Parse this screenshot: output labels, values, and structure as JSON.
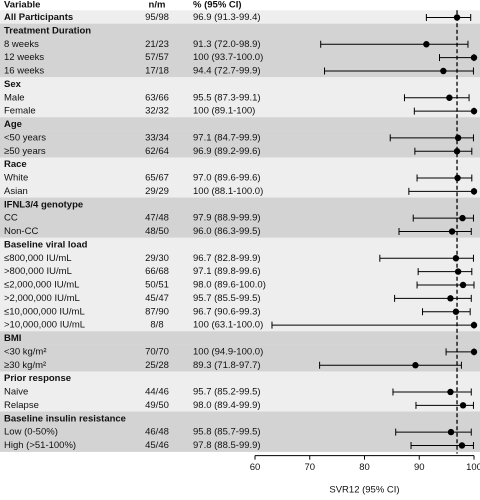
{
  "chart_data": {
    "type": "forest",
    "columns": [
      "Variable",
      "n/m",
      "% (95% CI)"
    ],
    "overall": {
      "label": "All Participants",
      "n_m": "95/98",
      "value_label": "96.9 (91.3-99.4)",
      "value": 96.9,
      "ci": [
        91.3,
        99.4
      ]
    },
    "groups": [
      {
        "name": "Treatment Duration",
        "rows": [
          {
            "label": "8 weeks",
            "n_m": "21/23",
            "value_label": "91.3 (72.0-98.9)",
            "value": 91.3,
            "ci": [
              72.0,
              98.9
            ]
          },
          {
            "label": "12 weeks",
            "n_m": "57/57",
            "value_label": "100 (93.7-100.0)",
            "value": 100,
            "ci": [
              93.7,
              100.0
            ]
          },
          {
            "label": "16 weeks",
            "n_m": "17/18",
            "value_label": "94.4 (72.7-99.9)",
            "value": 94.4,
            "ci": [
              72.7,
              99.9
            ]
          }
        ]
      },
      {
        "name": "Sex",
        "rows": [
          {
            "label": "Male",
            "n_m": "63/66",
            "value_label": "95.5 (87.3-99.1)",
            "value": 95.5,
            "ci": [
              87.3,
              99.1
            ]
          },
          {
            "label": "Female",
            "n_m": "32/32",
            "value_label": "100 (89.1-100)",
            "value": 100,
            "ci": [
              89.1,
              100
            ]
          }
        ]
      },
      {
        "name": "Age",
        "rows": [
          {
            "label": "<50 years",
            "n_m": "33/34",
            "value_label": "97.1 (84.7-99.9)",
            "value": 97.1,
            "ci": [
              84.7,
              99.9
            ]
          },
          {
            "label": "≥50 years",
            "n_m": "62/64",
            "value_label": "96.9 (89.2-99.6)",
            "value": 96.9,
            "ci": [
              89.2,
              99.6
            ]
          }
        ]
      },
      {
        "name": "Race",
        "rows": [
          {
            "label": "White",
            "n_m": "65/67",
            "value_label": "97.0 (89.6-99.6)",
            "value": 97.0,
            "ci": [
              89.6,
              99.6
            ]
          },
          {
            "label": "Asian",
            "n_m": "29/29",
            "value_label": "100 (88.1-100.0)",
            "value": 100,
            "ci": [
              88.1,
              100.0
            ]
          }
        ]
      },
      {
        "name": "IFNL3/4 genotype",
        "rows": [
          {
            "label": "CC",
            "n_m": "47/48",
            "value_label": "97.9 (88.9-99.9)",
            "value": 97.9,
            "ci": [
              88.9,
              99.9
            ]
          },
          {
            "label": "Non-CC",
            "n_m": "48/50",
            "value_label": "96.0 (86.3-99.5)",
            "value": 96.0,
            "ci": [
              86.3,
              99.5
            ]
          }
        ]
      },
      {
        "name": "Baseline viral load",
        "rows": [
          {
            "label": "≤800,000 IU/mL",
            "n_m": "29/30",
            "value_label": "96.7 (82.8-99.9)",
            "value": 96.7,
            "ci": [
              82.8,
              99.9
            ]
          },
          {
            "label": ">800,000 IU/mL",
            "n_m": "66/68",
            "value_label": "97.1 (89.8-99.6)",
            "value": 97.1,
            "ci": [
              89.8,
              99.6
            ]
          },
          {
            "label": "≤2,000,000 IU/mL",
            "n_m": "50/51",
            "value_label": "98.0 (89.6-100.0)",
            "value": 98.0,
            "ci": [
              89.6,
              100.0
            ]
          },
          {
            "label": ">2,000,000 IU/mL",
            "n_m": "45/47",
            "value_label": "95.7 (85.5-99.5)",
            "value": 95.7,
            "ci": [
              85.5,
              99.5
            ]
          },
          {
            "label": "≤10,000,000 IU/mL",
            "n_m": "87/90",
            "value_label": "96.7 (90.6-99.3)",
            "value": 96.7,
            "ci": [
              90.6,
              99.3
            ]
          },
          {
            "label": ">10,000,000 IU/mL",
            "n_m": "8/8",
            "value_label": "100 (63.1-100.0)",
            "value": 100,
            "ci": [
              63.1,
              100.0
            ]
          }
        ]
      },
      {
        "name": "BMI",
        "rows": [
          {
            "label": "<30 kg/m²",
            "n_m": "70/70",
            "value_label": "100 (94.9-100.0)",
            "value": 100,
            "ci": [
              94.9,
              100.0
            ]
          },
          {
            "label": "≥30 kg/m²",
            "n_m": "25/28",
            "value_label": "89.3 (71.8-97.7)",
            "value": 89.3,
            "ci": [
              71.8,
              97.7
            ]
          }
        ]
      },
      {
        "name": "Prior response",
        "rows": [
          {
            "label": "Naive",
            "n_m": "44/46",
            "value_label": "95.7 (85.2-99.5)",
            "value": 95.7,
            "ci": [
              85.2,
              99.5
            ]
          },
          {
            "label": "Relapse",
            "n_m": "49/50",
            "value_label": "98.0 (89.4-99.9)",
            "value": 98.0,
            "ci": [
              89.4,
              99.9
            ]
          }
        ]
      },
      {
        "name": "Baseline insulin resistance",
        "rows": [
          {
            "label": "Low (0-50%)",
            "n_m": "46/48",
            "value_label": "95.8 (85.7-99.5)",
            "value": 95.8,
            "ci": [
              85.7,
              99.5
            ]
          },
          {
            "label": "High (>51-100%)",
            "n_m": "45/46",
            "value_label": "97.8 (88.5-99.9)",
            "value": 97.8,
            "ci": [
              88.5,
              99.9
            ]
          }
        ]
      }
    ],
    "xlim": [
      60,
      100
    ],
    "xticks": [
      60,
      70,
      80,
      90,
      100
    ],
    "xlabel": "SVR12 (95% CI)"
  }
}
